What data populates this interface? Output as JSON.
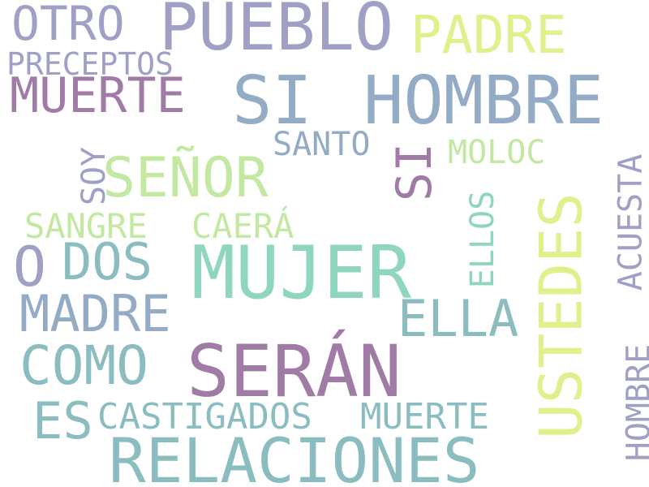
{
  "words": {
    "otro": "OTRO",
    "pueblo": "PUEBLO",
    "padre": "PADRE",
    "preceptos": "PRECEPTOS",
    "muerte_1": "MUERTE",
    "si_1": "SI",
    "hombre_1": "HOMBRE",
    "santo": "SANTO",
    "si_2": "SI",
    "moloc": "MOLOC",
    "soy": "SOY",
    "senor": "SEÑOR",
    "sangre": "SANGRE",
    "caera": "CAERÁ",
    "o": "O",
    "dos": "DOS",
    "mujer": "MUJER",
    "ellos": "ELLOS",
    "ustedes": "USTEDES",
    "acuesta": "ACUESTA",
    "hombre_2": "HOMBRE",
    "madre": "MADRE",
    "ella": "ELLA",
    "como": "COMO",
    "seran": "SERÁN",
    "es": "ES",
    "castigados": "CASTIGADOS",
    "muerte_2": "MUERTE",
    "relaciones": "RELACIONES"
  },
  "colors": {
    "purple": "#a07ba6",
    "lavender": "#9fa0c4",
    "blue": "#93abc5",
    "teal": "#8bbdc0",
    "mint": "#8ed6bc",
    "light_green": "#c3e8a2",
    "yellow": "#e2ef8d",
    "background": "#ffffff"
  }
}
